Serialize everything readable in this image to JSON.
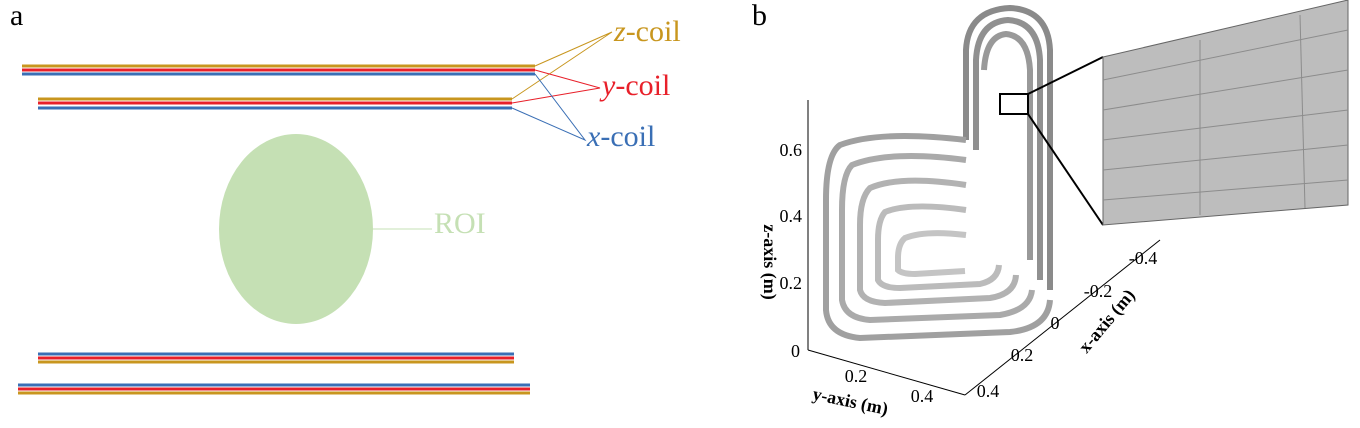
{
  "panel_a": {
    "label": "a",
    "coils": [
      {
        "var": "z",
        "suffix": "-coil"
      },
      {
        "var": "y",
        "suffix": "-coil"
      },
      {
        "var": "x",
        "suffix": "-coil"
      }
    ],
    "roi": "ROI"
  },
  "panel_b": {
    "label": "b",
    "z_axis": {
      "title": "z-axis (m)",
      "ticks": [
        "0",
        "0.2",
        "0.4",
        "0.6"
      ]
    },
    "y_axis": {
      "title": "y-axis (m)",
      "ticks": [
        "0.2",
        "0.4"
      ]
    },
    "x_axis": {
      "title": "x-axis (m)",
      "ticks": [
        "0.4",
        "0.2",
        "0",
        "-0.2",
        "-0.4"
      ]
    }
  }
}
